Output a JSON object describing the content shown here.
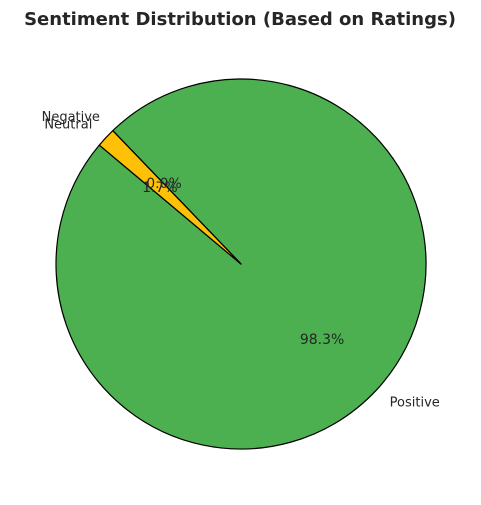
{
  "chart_data": {
    "type": "pie",
    "title": "Sentiment Distribution (Based on Ratings)",
    "start_angle_deg": 140,
    "direction": "counterclockwise",
    "slices": [
      {
        "label": "Positive",
        "value": 98.3,
        "pct_label": "98.3%",
        "color": "#4caf50"
      },
      {
        "label": "Negative",
        "value": 0.0,
        "pct_label": "0.0%",
        "color": "#f44336"
      },
      {
        "label": "Neutral",
        "value": 1.7,
        "pct_label": "1.7%",
        "color": "#ffc107"
      }
    ],
    "edge_color": "#000000"
  }
}
